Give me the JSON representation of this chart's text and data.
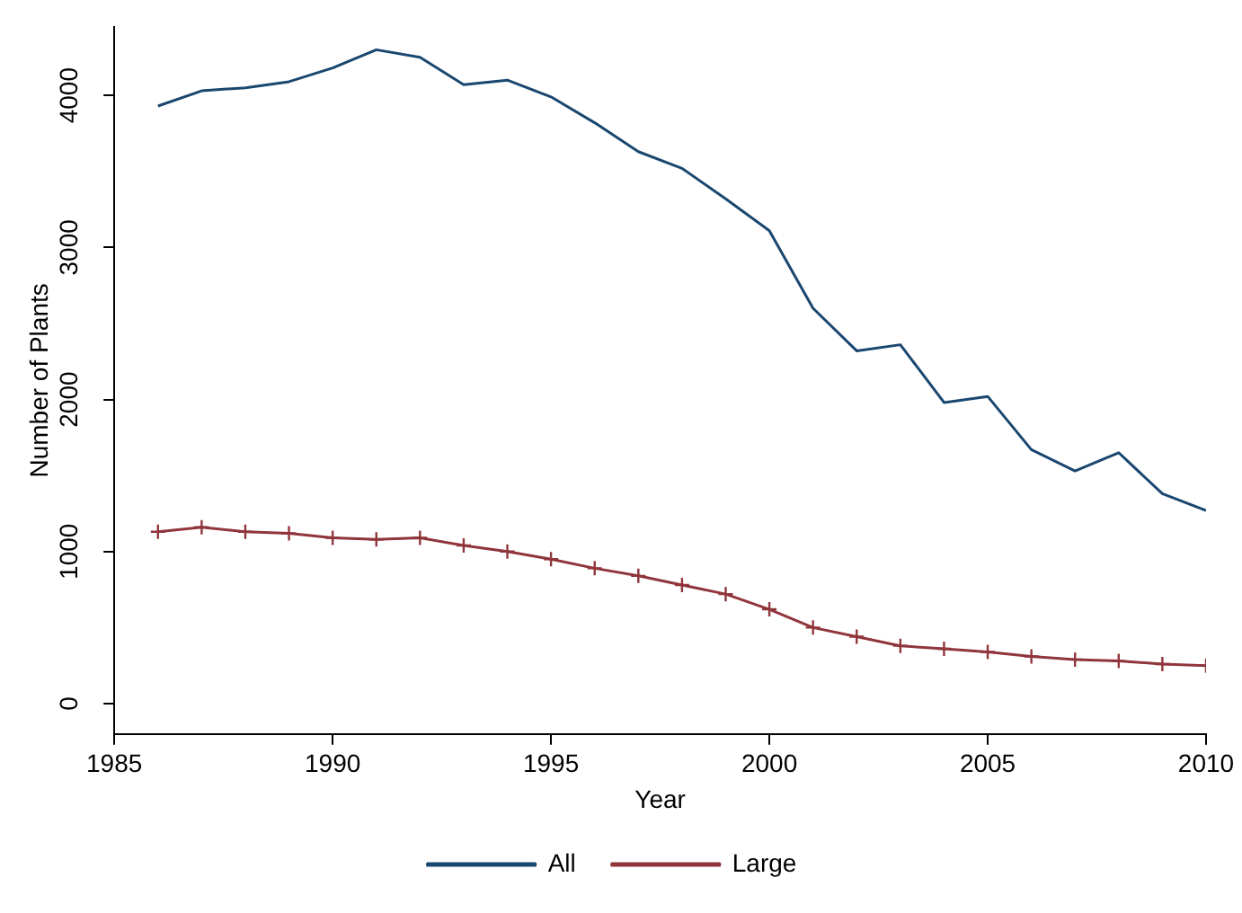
{
  "chart_data": {
    "type": "line",
    "xlabel": "Year",
    "ylabel": "Number of Plants",
    "x": [
      1986,
      1987,
      1988,
      1989,
      1990,
      1991,
      1992,
      1993,
      1994,
      1995,
      1996,
      1997,
      1998,
      1999,
      2000,
      2001,
      2002,
      2003,
      2004,
      2005,
      2006,
      2007,
      2008,
      2009,
      2010
    ],
    "series": [
      {
        "name": "All",
        "color": "#1a476f",
        "marker": "none",
        "values": [
          3930,
          4030,
          4050,
          4090,
          4180,
          4300,
          4250,
          4070,
          4100,
          3990,
          3820,
          3630,
          3520,
          3320,
          3110,
          2600,
          2320,
          2360,
          1980,
          2020,
          1670,
          1530,
          1650,
          1380,
          1270
        ]
      },
      {
        "name": "Large",
        "color": "#90353b",
        "marker": "cross",
        "values": [
          1130,
          1160,
          1130,
          1120,
          1090,
          1080,
          1090,
          1040,
          1000,
          950,
          890,
          840,
          780,
          720,
          620,
          500,
          440,
          380,
          360,
          340,
          310,
          290,
          280,
          260,
          250
        ]
      }
    ],
    "xlim": [
      1985,
      2010
    ],
    "xticks": [
      1985,
      1990,
      1995,
      2000,
      2005,
      2010
    ],
    "ylim": [
      -200,
      4450
    ],
    "yticks": [
      0,
      1000,
      2000,
      3000,
      4000
    ],
    "grid": false,
    "legend": "bottom",
    "line_style": "solid"
  }
}
